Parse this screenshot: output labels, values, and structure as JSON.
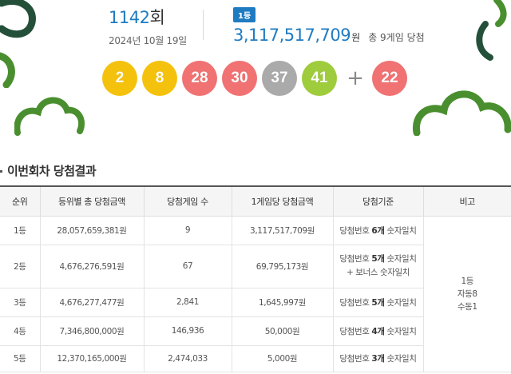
{
  "draw": {
    "round_number": "1142",
    "round_suffix": "회",
    "date": "2024년 10월 19일",
    "first_badge": "1등",
    "first_prize_amount": "3,117,517,709",
    "first_prize_unit": "원",
    "winner_summary": "총 9게임 당첨"
  },
  "numbers": [
    {
      "value": "2",
      "color": "#f4c20d"
    },
    {
      "value": "8",
      "color": "#f4c20d"
    },
    {
      "value": "28",
      "color": "#f07272"
    },
    {
      "value": "30",
      "color": "#f07272"
    },
    {
      "value": "37",
      "color": "#aaaaaa"
    },
    {
      "value": "41",
      "color": "#9ecc3c"
    }
  ],
  "plus_sign": "+",
  "bonus": {
    "value": "22",
    "color": "#f07272"
  },
  "section_title": "이번회차 당첨결과",
  "table": {
    "headers": [
      "순위",
      "등위별 총 당첨금액",
      "당첨게임 수",
      "1게임당 당첨금액",
      "당첨기준",
      "비고"
    ],
    "rows": [
      {
        "rank": "1등",
        "total": "28,057,659,381원",
        "games": "9",
        "per_game": "3,117,517,709원",
        "crit_pre": "당첨번호 ",
        "crit_bold": "6개",
        "crit_post": " 숫자일치",
        "crit_extra": ""
      },
      {
        "rank": "2등",
        "total": "4,676,276,591원",
        "games": "67",
        "per_game": "69,795,173원",
        "crit_pre": "당첨번호 ",
        "crit_bold": "5개",
        "crit_post": " 숫자일치",
        "crit_extra": "+ 보너스 숫자일치"
      },
      {
        "rank": "3등",
        "total": "4,676,277,477원",
        "games": "2,841",
        "per_game": "1,645,997원",
        "crit_pre": "당첨번호 ",
        "crit_bold": "5개",
        "crit_post": " 숫자일치",
        "crit_extra": ""
      },
      {
        "rank": "4등",
        "total": "7,346,800,000원",
        "games": "146,936",
        "per_game": "50,000원",
        "crit_pre": "당첨번호 ",
        "crit_bold": "4개",
        "crit_post": " 숫자일치",
        "crit_extra": ""
      },
      {
        "rank": "5등",
        "total": "12,370,165,000원",
        "games": "2,474,033",
        "per_game": "5,000원",
        "crit_pre": "당첨번호 ",
        "crit_bold": "3개",
        "crit_post": " 숫자일치",
        "crit_extra": ""
      }
    ],
    "remark": {
      "line1": "1등",
      "line2": "자동8",
      "line3": "수동1"
    }
  },
  "colors": {
    "accent": "#1f7bc1",
    "decoration": "#4a8f2f",
    "decoration_dark": "#24503a"
  }
}
